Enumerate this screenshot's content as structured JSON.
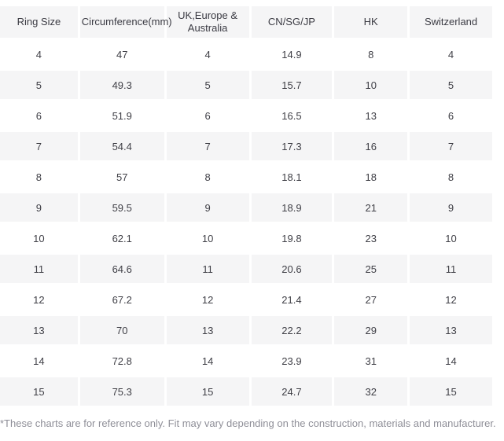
{
  "table": {
    "columns": [
      "Ring Size",
      "Circumference(mm)",
      "UK,Europe & Australia",
      "CN/SG/JP",
      "HK",
      "Switzerland"
    ],
    "rows": [
      [
        "4",
        "47",
        "4",
        "14.9",
        "8",
        "4"
      ],
      [
        "5",
        "49.3",
        "5",
        "15.7",
        "10",
        "5"
      ],
      [
        "6",
        "51.9",
        "6",
        "16.5",
        "13",
        "6"
      ],
      [
        "7",
        "54.4",
        "7",
        "17.3",
        "16",
        "7"
      ],
      [
        "8",
        "57",
        "8",
        "18.1",
        "18",
        "8"
      ],
      [
        "9",
        "59.5",
        "9",
        "18.9",
        "21",
        "9"
      ],
      [
        "10",
        "62.1",
        "10",
        "19.8",
        "23",
        "10"
      ],
      [
        "11",
        "64.6",
        "11",
        "20.6",
        "25",
        "11"
      ],
      [
        "12",
        "67.2",
        "12",
        "21.4",
        "27",
        "12"
      ],
      [
        "13",
        "70",
        "13",
        "22.2",
        "29",
        "13"
      ],
      [
        "14",
        "72.8",
        "14",
        "23.9",
        "31",
        "14"
      ],
      [
        "15",
        "75.3",
        "15",
        "24.7",
        "32",
        "15"
      ]
    ]
  },
  "footnote": "*These charts are for reference only. Fit may vary depending on the construction, materials and manufacturer.",
  "colors": {
    "stripe_background": "#f5f5f6",
    "header_background": "#f5f5f6",
    "cell_text": "#3f3f46",
    "footnote_text": "#8f8f98"
  }
}
